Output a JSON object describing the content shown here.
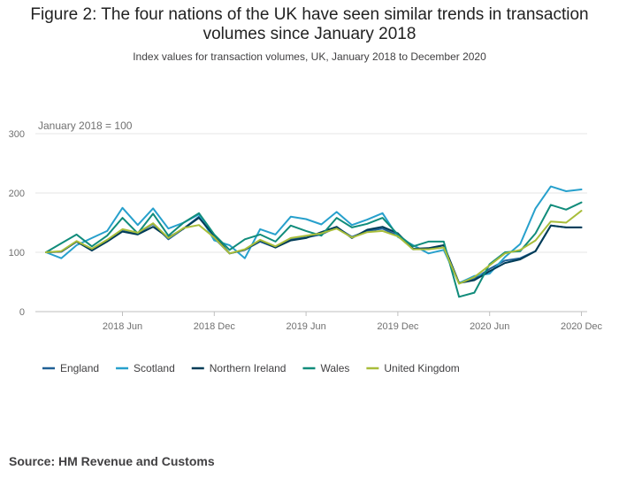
{
  "title_lines": [
    "Figure 2: The four nations of the UK have seen similar trends in transaction",
    "volumes since January 2018"
  ],
  "subtitle": "Index values for transaction volumes, UK, January 2018 to December 2020",
  "source": "Source: HM Revenue and Customs",
  "chart_data": {
    "type": "line",
    "annotation": "January 2018 = 100",
    "ylim": [
      0,
      300
    ],
    "yticks": [
      0,
      100,
      200,
      300
    ],
    "xtick_labels": [
      {
        "label": "2018 Jun",
        "month_index": 5
      },
      {
        "label": "2018 Dec",
        "month_index": 11
      },
      {
        "label": "2019 Jun",
        "month_index": 17
      },
      {
        "label": "2019 Dec",
        "month_index": 23
      },
      {
        "label": "2020 Jun",
        "month_index": 29
      },
      {
        "label": "2020 Dec",
        "month_index": 35
      }
    ],
    "x": [
      "2018-01",
      "2018-02",
      "2018-03",
      "2018-04",
      "2018-05",
      "2018-06",
      "2018-07",
      "2018-08",
      "2018-09",
      "2018-10",
      "2018-11",
      "2018-12",
      "2019-01",
      "2019-02",
      "2019-03",
      "2019-04",
      "2019-05",
      "2019-06",
      "2019-07",
      "2019-08",
      "2019-09",
      "2019-10",
      "2019-11",
      "2019-12",
      "2020-01",
      "2020-02",
      "2020-03",
      "2020-04",
      "2020-05",
      "2020-06",
      "2020-07",
      "2020-08",
      "2020-09",
      "2020-10",
      "2020-11",
      "2020-12"
    ],
    "legend_position": "bottom",
    "series": [
      {
        "name": "England",
        "color": "#206095",
        "values": [
          100,
          101,
          118,
          104,
          120,
          138,
          132,
          148,
          122,
          140,
          160,
          124,
          98,
          104,
          118,
          108,
          122,
          125,
          130,
          142,
          126,
          136,
          140,
          128,
          105,
          106,
          112,
          48,
          55,
          72,
          86,
          90,
          102,
          145,
          142,
          142
        ]
      },
      {
        "name": "Scotland",
        "color": "#27a0cc",
        "values": [
          100,
          90,
          112,
          124,
          136,
          175,
          146,
          174,
          140,
          150,
          164,
          120,
          112,
          90,
          139,
          130,
          160,
          156,
          147,
          168,
          146,
          155,
          166,
          126,
          112,
          98,
          104,
          48,
          60,
          64,
          92,
          114,
          174,
          211,
          203,
          206
        ]
      },
      {
        "name": "Northern Ireland",
        "color": "#003c57",
        "values": [
          100,
          101,
          118,
          103,
          118,
          135,
          130,
          143,
          125,
          140,
          158,
          128,
          98,
          104,
          120,
          108,
          120,
          124,
          134,
          143,
          124,
          138,
          143,
          132,
          106,
          107,
          112,
          48,
          53,
          68,
          82,
          88,
          102,
          145,
          142,
          142
        ]
      },
      {
        "name": "Wales",
        "color": "#118c7b",
        "values": [
          100,
          115,
          130,
          110,
          128,
          158,
          132,
          165,
          128,
          150,
          166,
          130,
          104,
          122,
          130,
          118,
          145,
          136,
          128,
          158,
          142,
          148,
          158,
          130,
          110,
          118,
          118,
          25,
          32,
          80,
          100,
          102,
          132,
          180,
          172,
          184
        ]
      },
      {
        "name": "United Kingdom",
        "color": "#a8bd3a",
        "values": [
          100,
          102,
          119,
          106,
          121,
          139,
          133,
          149,
          124,
          141,
          146,
          125,
          98,
          105,
          121,
          110,
          124,
          128,
          132,
          140,
          125,
          134,
          136,
          127,
          105,
          105,
          108,
          47,
          58,
          78,
          98,
          104,
          120,
          152,
          150,
          170
        ]
      }
    ]
  }
}
